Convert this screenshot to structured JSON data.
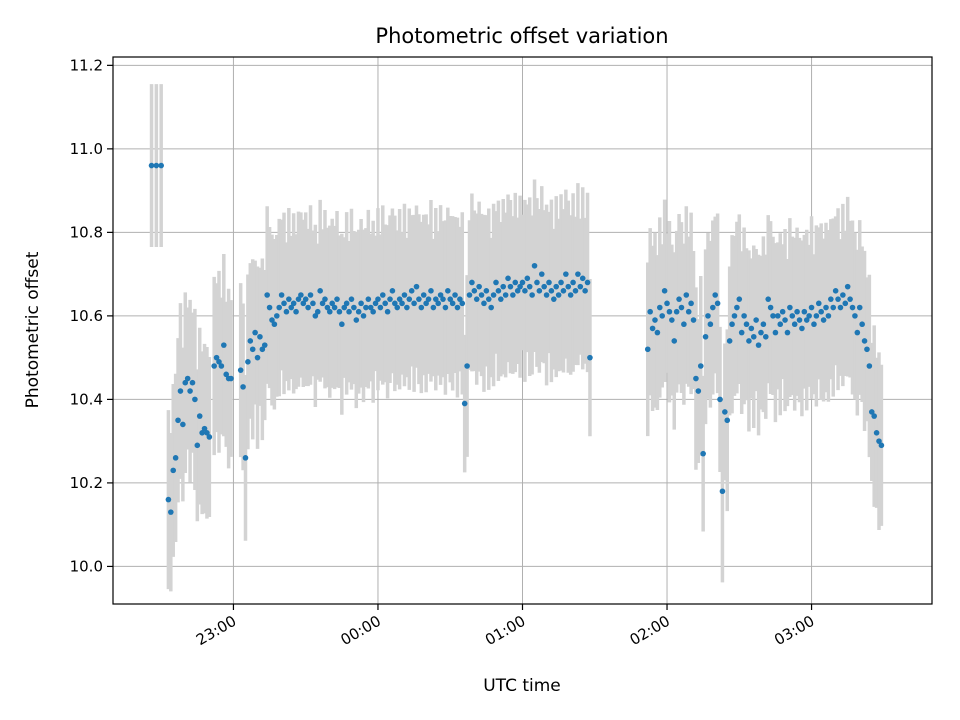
{
  "chart_data": {
    "type": "scatter",
    "title": "Photometric offset variation",
    "xlabel": "UTC time",
    "ylabel": "Photometric offset",
    "xlim": [
      "22:10",
      "03:50"
    ],
    "ylim": [
      9.91,
      11.22
    ],
    "grid": true,
    "x_ticks": [
      "23:00",
      "00:00",
      "01:00",
      "02:00",
      "03:00"
    ],
    "y_ticks": [
      "10.0",
      "10.2",
      "10.4",
      "10.6",
      "10.8",
      "11.0",
      "11.2"
    ],
    "point_color": "#1f77b4",
    "errorbar_color": "#d3d3d3",
    "series": [
      {
        "error_bar_halfwidth": 0.19,
        "points": [
          [
            "22:26",
            10.96
          ],
          [
            "22:28",
            10.96
          ],
          [
            "22:30",
            10.96
          ],
          [
            "22:33",
            10.16
          ],
          [
            "22:34",
            10.13
          ],
          [
            "22:35",
            10.23
          ],
          [
            "22:36",
            10.26
          ],
          [
            "22:37",
            10.35
          ],
          [
            "22:38",
            10.42
          ],
          [
            "22:39",
            10.34
          ],
          [
            "22:40",
            10.44
          ],
          [
            "22:41",
            10.45
          ],
          [
            "22:42",
            10.42
          ],
          [
            "22:43",
            10.44
          ],
          [
            "22:44",
            10.4
          ],
          [
            "22:45",
            10.29
          ],
          [
            "22:46",
            10.36
          ],
          [
            "22:47",
            10.32
          ],
          [
            "22:48",
            10.33
          ],
          [
            "22:49",
            10.32
          ],
          [
            "22:50",
            10.31
          ],
          [
            "22:52",
            10.48
          ],
          [
            "22:53",
            10.5
          ],
          [
            "22:54",
            10.49
          ],
          [
            "22:55",
            10.48
          ],
          [
            "22:56",
            10.53
          ],
          [
            "22:57",
            10.46
          ],
          [
            "22:58",
            10.45
          ],
          [
            "22:59",
            10.45
          ],
          [
            "23:03",
            10.47
          ],
          [
            "23:04",
            10.43
          ],
          [
            "23:05",
            10.26
          ],
          [
            "23:06",
            10.49
          ],
          [
            "23:07",
            10.54
          ],
          [
            "23:08",
            10.52
          ],
          [
            "23:09",
            10.56
          ],
          [
            "23:10",
            10.5
          ],
          [
            "23:11",
            10.55
          ],
          [
            "23:12",
            10.52
          ],
          [
            "23:13",
            10.53
          ],
          [
            "23:14",
            10.65
          ],
          [
            "23:15",
            10.62
          ],
          [
            "23:16",
            10.59
          ],
          [
            "23:17",
            10.58
          ],
          [
            "23:18",
            10.6
          ],
          [
            "23:19",
            10.62
          ],
          [
            "23:20",
            10.65
          ],
          [
            "23:21",
            10.63
          ],
          [
            "23:22",
            10.61
          ],
          [
            "23:23",
            10.64
          ],
          [
            "23:24",
            10.62
          ],
          [
            "23:25",
            10.63
          ],
          [
            "23:26",
            10.61
          ],
          [
            "23:27",
            10.64
          ],
          [
            "23:28",
            10.65
          ],
          [
            "23:29",
            10.63
          ],
          [
            "23:30",
            10.64
          ],
          [
            "23:31",
            10.62
          ],
          [
            "23:32",
            10.65
          ],
          [
            "23:33",
            10.63
          ],
          [
            "23:34",
            10.6
          ],
          [
            "23:35",
            10.61
          ],
          [
            "23:36",
            10.66
          ],
          [
            "23:37",
            10.63
          ],
          [
            "23:38",
            10.64
          ],
          [
            "23:39",
            10.62
          ],
          [
            "23:40",
            10.61
          ],
          [
            "23:41",
            10.63
          ],
          [
            "23:42",
            10.62
          ],
          [
            "23:43",
            10.64
          ],
          [
            "23:44",
            10.61
          ],
          [
            "23:45",
            10.58
          ],
          [
            "23:46",
            10.62
          ],
          [
            "23:47",
            10.63
          ],
          [
            "23:48",
            10.61
          ],
          [
            "23:49",
            10.64
          ],
          [
            "23:50",
            10.62
          ],
          [
            "23:51",
            10.59
          ],
          [
            "23:52",
            10.61
          ],
          [
            "23:53",
            10.63
          ],
          [
            "23:54",
            10.6
          ],
          [
            "23:55",
            10.62
          ],
          [
            "23:56",
            10.64
          ],
          [
            "23:57",
            10.62
          ],
          [
            "23:58",
            10.61
          ],
          [
            "23:59",
            10.63
          ],
          [
            "00:00",
            10.64
          ],
          [
            "00:01",
            10.62
          ],
          [
            "00:02",
            10.65
          ],
          [
            "00:03",
            10.63
          ],
          [
            "00:04",
            10.61
          ],
          [
            "00:05",
            10.64
          ],
          [
            "00:06",
            10.66
          ],
          [
            "00:07",
            10.63
          ],
          [
            "00:08",
            10.62
          ],
          [
            "00:09",
            10.64
          ],
          [
            "00:10",
            10.63
          ],
          [
            "00:11",
            10.65
          ],
          [
            "00:12",
            10.62
          ],
          [
            "00:13",
            10.64
          ],
          [
            "00:14",
            10.66
          ],
          [
            "00:15",
            10.63
          ],
          [
            "00:16",
            10.67
          ],
          [
            "00:17",
            10.64
          ],
          [
            "00:18",
            10.62
          ],
          [
            "00:19",
            10.65
          ],
          [
            "00:20",
            10.63
          ],
          [
            "00:21",
            10.64
          ],
          [
            "00:22",
            10.66
          ],
          [
            "00:23",
            10.62
          ],
          [
            "00:24",
            10.64
          ],
          [
            "00:25",
            10.63
          ],
          [
            "00:26",
            10.65
          ],
          [
            "00:27",
            10.64
          ],
          [
            "00:28",
            10.62
          ],
          [
            "00:29",
            10.66
          ],
          [
            "00:30",
            10.64
          ],
          [
            "00:31",
            10.63
          ],
          [
            "00:32",
            10.65
          ],
          [
            "00:33",
            10.62
          ],
          [
            "00:34",
            10.64
          ],
          [
            "00:35",
            10.63
          ],
          [
            "00:36",
            10.39
          ],
          [
            "00:37",
            10.48
          ],
          [
            "00:38",
            10.65
          ],
          [
            "00:39",
            10.68
          ],
          [
            "00:40",
            10.66
          ],
          [
            "00:41",
            10.64
          ],
          [
            "00:42",
            10.67
          ],
          [
            "00:43",
            10.65
          ],
          [
            "00:44",
            10.63
          ],
          [
            "00:45",
            10.66
          ],
          [
            "00:46",
            10.64
          ],
          [
            "00:47",
            10.62
          ],
          [
            "00:48",
            10.65
          ],
          [
            "00:49",
            10.68
          ],
          [
            "00:50",
            10.66
          ],
          [
            "00:51",
            10.64
          ],
          [
            "00:52",
            10.67
          ],
          [
            "00:53",
            10.65
          ],
          [
            "00:54",
            10.69
          ],
          [
            "00:55",
            10.67
          ],
          [
            "00:56",
            10.65
          ],
          [
            "00:57",
            10.68
          ],
          [
            "00:58",
            10.66
          ],
          [
            "00:59",
            10.67
          ],
          [
            "01:00",
            10.68
          ],
          [
            "01:01",
            10.66
          ],
          [
            "01:02",
            10.69
          ],
          [
            "01:03",
            10.67
          ],
          [
            "01:04",
            10.65
          ],
          [
            "01:05",
            10.72
          ],
          [
            "01:06",
            10.68
          ],
          [
            "01:07",
            10.66
          ],
          [
            "01:08",
            10.7
          ],
          [
            "01:09",
            10.67
          ],
          [
            "01:10",
            10.65
          ],
          [
            "01:11",
            10.68
          ],
          [
            "01:12",
            10.66
          ],
          [
            "01:13",
            10.64
          ],
          [
            "01:14",
            10.67
          ],
          [
            "01:15",
            10.65
          ],
          [
            "01:16",
            10.68
          ],
          [
            "01:17",
            10.66
          ],
          [
            "01:18",
            10.7
          ],
          [
            "01:19",
            10.67
          ],
          [
            "01:20",
            10.65
          ],
          [
            "01:21",
            10.68
          ],
          [
            "01:22",
            10.66
          ],
          [
            "01:23",
            10.7
          ],
          [
            "01:24",
            10.67
          ],
          [
            "01:25",
            10.69
          ],
          [
            "01:26",
            10.66
          ],
          [
            "01:27",
            10.68
          ],
          [
            "01:28",
            10.5
          ],
          [
            "01:52",
            10.52
          ],
          [
            "01:53",
            10.61
          ],
          [
            "01:54",
            10.57
          ],
          [
            "01:55",
            10.59
          ],
          [
            "01:56",
            10.56
          ],
          [
            "01:57",
            10.62
          ],
          [
            "01:58",
            10.6
          ],
          [
            "01:59",
            10.66
          ],
          [
            "02:00",
            10.63
          ],
          [
            "02:01",
            10.61
          ],
          [
            "02:02",
            10.59
          ],
          [
            "02:03",
            10.54
          ],
          [
            "02:04",
            10.61
          ],
          [
            "02:05",
            10.64
          ],
          [
            "02:06",
            10.62
          ],
          [
            "02:07",
            10.58
          ],
          [
            "02:08",
            10.65
          ],
          [
            "02:09",
            10.61
          ],
          [
            "02:10",
            10.63
          ],
          [
            "02:11",
            10.59
          ],
          [
            "02:12",
            10.45
          ],
          [
            "02:13",
            10.42
          ],
          [
            "02:14",
            10.48
          ],
          [
            "02:15",
            10.27
          ],
          [
            "02:16",
            10.55
          ],
          [
            "02:17",
            10.6
          ],
          [
            "02:18",
            10.58
          ],
          [
            "02:19",
            10.62
          ],
          [
            "02:20",
            10.65
          ],
          [
            "02:21",
            10.63
          ],
          [
            "02:22",
            10.4
          ],
          [
            "02:23",
            10.18
          ],
          [
            "02:24",
            10.37
          ],
          [
            "02:25",
            10.35
          ],
          [
            "02:26",
            10.54
          ],
          [
            "02:27",
            10.58
          ],
          [
            "02:28",
            10.6
          ],
          [
            "02:29",
            10.62
          ],
          [
            "02:30",
            10.64
          ],
          [
            "02:31",
            10.56
          ],
          [
            "02:32",
            10.6
          ],
          [
            "02:33",
            10.58
          ],
          [
            "02:34",
            10.54
          ],
          [
            "02:35",
            10.57
          ],
          [
            "02:36",
            10.55
          ],
          [
            "02:37",
            10.59
          ],
          [
            "02:38",
            10.53
          ],
          [
            "02:39",
            10.56
          ],
          [
            "02:40",
            10.58
          ],
          [
            "02:41",
            10.55
          ],
          [
            "02:42",
            10.64
          ],
          [
            "02:43",
            10.62
          ],
          [
            "02:44",
            10.6
          ],
          [
            "02:45",
            10.56
          ],
          [
            "02:46",
            10.6
          ],
          [
            "02:47",
            10.58
          ],
          [
            "02:48",
            10.61
          ],
          [
            "02:49",
            10.59
          ],
          [
            "02:50",
            10.56
          ],
          [
            "02:51",
            10.62
          ],
          [
            "02:52",
            10.6
          ],
          [
            "02:53",
            10.58
          ],
          [
            "02:54",
            10.61
          ],
          [
            "02:55",
            10.59
          ],
          [
            "02:56",
            10.57
          ],
          [
            "02:57",
            10.61
          ],
          [
            "02:58",
            10.59
          ],
          [
            "02:59",
            10.6
          ],
          [
            "03:00",
            10.62
          ],
          [
            "03:01",
            10.58
          ],
          [
            "03:02",
            10.6
          ],
          [
            "03:03",
            10.63
          ],
          [
            "03:04",
            10.61
          ],
          [
            "03:05",
            10.59
          ],
          [
            "03:06",
            10.62
          ],
          [
            "03:07",
            10.6
          ],
          [
            "03:08",
            10.64
          ],
          [
            "03:09",
            10.62
          ],
          [
            "03:10",
            10.66
          ],
          [
            "03:11",
            10.64
          ],
          [
            "03:12",
            10.62
          ],
          [
            "03:13",
            10.65
          ],
          [
            "03:14",
            10.63
          ],
          [
            "03:15",
            10.67
          ],
          [
            "03:16",
            10.64
          ],
          [
            "03:17",
            10.62
          ],
          [
            "03:18",
            10.6
          ],
          [
            "03:19",
            10.56
          ],
          [
            "03:20",
            10.62
          ],
          [
            "03:21",
            10.58
          ],
          [
            "03:22",
            10.54
          ],
          [
            "03:23",
            10.52
          ],
          [
            "03:24",
            10.48
          ],
          [
            "03:25",
            10.37
          ],
          [
            "03:26",
            10.36
          ],
          [
            "03:27",
            10.32
          ],
          [
            "03:28",
            10.3
          ],
          [
            "03:29",
            10.29
          ]
        ]
      }
    ]
  }
}
